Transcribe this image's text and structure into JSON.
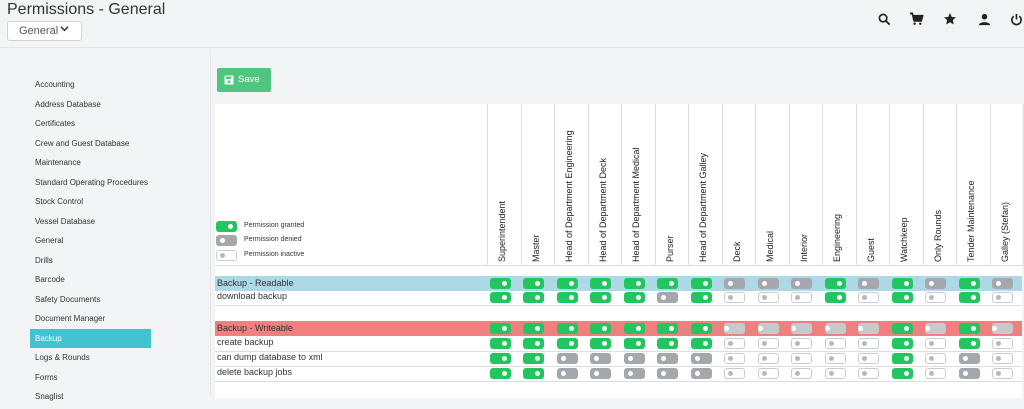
{
  "header": {
    "title": "Permissions - General",
    "dropdown_value": "General",
    "icons": [
      "search-icon",
      "cart-icon",
      "star-icon",
      "user-icon",
      "power-icon"
    ]
  },
  "sidebar": {
    "items": [
      {
        "label": "Accounting"
      },
      {
        "label": "Address Database"
      },
      {
        "label": "Certificates"
      },
      {
        "label": "Crew and Guest Database"
      },
      {
        "label": "Maintenance"
      },
      {
        "label": "Standard Operating Procedures"
      },
      {
        "label": "Stock Control"
      },
      {
        "label": "Vessel Database"
      },
      {
        "label": "General"
      },
      {
        "label": "Drills"
      },
      {
        "label": "Barcode"
      },
      {
        "label": "Safety Documents"
      },
      {
        "label": "Document Manager"
      },
      {
        "label": "Backup",
        "active": true
      },
      {
        "label": "Logs & Rounds"
      },
      {
        "label": "Forms"
      },
      {
        "label": "Snaglist"
      }
    ]
  },
  "save_label": "Save",
  "legend": {
    "granted": "Permission granted",
    "denied": "Permission denied",
    "inactive": "Permission inactive"
  },
  "columns": [
    "Superintendent",
    "Master",
    "Head of Department Engineering",
    "Head of Department Deck",
    "Head of Department Medical",
    "Purser",
    "Head of Department Galley",
    "Deck",
    "Medical",
    "Interior",
    "Engineering",
    "Guest",
    "Watchkeep",
    "Only Rounds",
    "Tender Maintenance",
    "Galley (Stefan)"
  ],
  "sections": [
    {
      "title": "Backup - Readable",
      "color": "#add8e6",
      "header_states": [
        "on",
        "on",
        "on",
        "on",
        "on",
        "on",
        "on",
        "off",
        "off",
        "off",
        "on",
        "off",
        "on",
        "off",
        "on",
        "off"
      ],
      "rows": [
        {
          "label": "download backup",
          "states": [
            "on",
            "on",
            "on",
            "on",
            "on",
            "off",
            "on",
            "inactive",
            "inactive",
            "inactive",
            "on",
            "inactive",
            "on",
            "inactive",
            "on",
            "inactive"
          ]
        }
      ]
    },
    {
      "title": "Backup - Writeable",
      "color": "#f08080",
      "header_states": [
        "on",
        "on",
        "on",
        "on",
        "on",
        "on",
        "on",
        "dim",
        "dim",
        "dim",
        "dim",
        "dim",
        "on",
        "dim",
        "on",
        "dim"
      ],
      "rows": [
        {
          "label": "create backup",
          "states": [
            "on",
            "on",
            "on",
            "on",
            "on",
            "on",
            "on",
            "inactive",
            "inactive",
            "inactive",
            "inactive",
            "inactive",
            "on",
            "inactive",
            "on",
            "inactive"
          ]
        },
        {
          "label": "can dump database to xml",
          "states": [
            "on",
            "on",
            "off",
            "off",
            "off",
            "off",
            "off",
            "inactive",
            "inactive",
            "inactive",
            "inactive",
            "inactive",
            "on",
            "inactive",
            "off",
            "inactive"
          ]
        },
        {
          "label": "delete backup jobs",
          "states": [
            "on",
            "on",
            "off",
            "off",
            "off",
            "off",
            "off",
            "inactive",
            "inactive",
            "inactive",
            "inactive",
            "inactive",
            "on",
            "inactive",
            "off",
            "inactive"
          ]
        }
      ]
    }
  ]
}
